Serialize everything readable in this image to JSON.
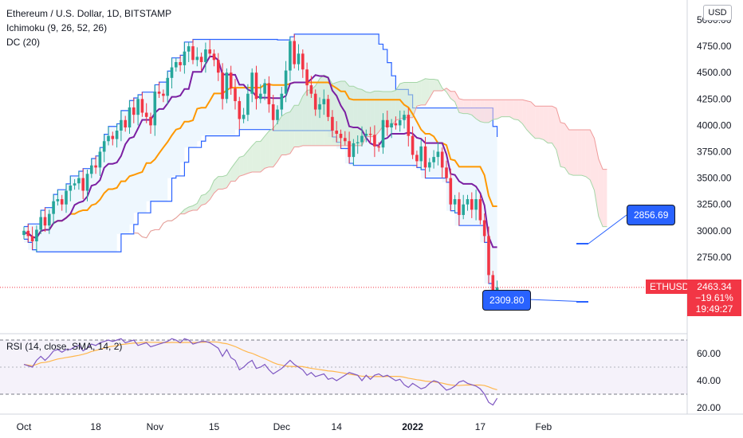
{
  "header": {
    "title": "Ethereum / U.S. Dollar, 1D, BITSTAMP",
    "indicator1": "Ichimoku (9, 26, 52, 26)",
    "indicator2": "DC (20)",
    "currency": "USD"
  },
  "price_axis": {
    "ticks": [
      "5000.00",
      "4750.00",
      "4500.00",
      "4250.00",
      "4000.00",
      "3750.00",
      "3500.00",
      "3250.00",
      "3000.00",
      "2750.00"
    ]
  },
  "rsi_panel": {
    "label": "RSI (14, close, SMA, 14, 2)",
    "ticks": [
      "60.00",
      "40.00",
      "20.00"
    ]
  },
  "time_axis": {
    "labels": [
      "Oct",
      "18",
      "Nov",
      "15",
      "Dec",
      "14",
      "2022",
      "17",
      "Feb"
    ]
  },
  "last_price": {
    "symbol": "ETHUSD",
    "price": "2463.34",
    "change": "−19.61%",
    "countdown": "19:49:27"
  },
  "callouts": {
    "upper": "2856.69",
    "lower": "2309.80"
  },
  "colors": {
    "up": "#26a69a",
    "down": "#f23645",
    "tenkan": "#7b1fa2",
    "kijun": "#ff9800",
    "donchian": "#2962ff",
    "rsi": "#7e57c2",
    "rsi_sma": "#ffb74d",
    "cloud_bull": "#c8e6c9",
    "cloud_bear": "#ffcdd2"
  },
  "chart_data": {
    "type": "candlestick",
    "symbol": "ETHUSD",
    "ylim": [
      2200,
      5080
    ],
    "x_ticks": [
      {
        "day": 1,
        "label": "Oct"
      },
      {
        "day": 18,
        "label": "18"
      },
      {
        "day": 32,
        "label": "Nov"
      },
      {
        "day": 46,
        "label": "15"
      },
      {
        "day": 62,
        "label": "Dec"
      },
      {
        "day": 75,
        "label": "14"
      },
      {
        "day": 93,
        "label": "2022"
      },
      {
        "day": 109,
        "label": "17"
      },
      {
        "day": 124,
        "label": "Feb"
      }
    ],
    "closes": [
      3000,
      2950,
      2900,
      3010,
      3130,
      3050,
      3160,
      3280,
      3300,
      3250,
      3380,
      3430,
      3450,
      3500,
      3380,
      3540,
      3620,
      3600,
      3750,
      3850,
      3900,
      3870,
      3950,
      4050,
      3980,
      4170,
      4100,
      4250,
      4120,
      4080,
      4000,
      4320,
      4300,
      4280,
      4450,
      4550,
      4600,
      4570,
      4700,
      4750,
      4620,
      4650,
      4600,
      4720,
      4680,
      4620,
      4500,
      4250,
      4500,
      4350,
      4230,
      4060,
      4100,
      4300,
      4500,
      4250,
      4300,
      4400,
      4200,
      4050,
      4150,
      4300,
      4520,
      4800,
      4580,
      4680,
      4530,
      4380,
      4300,
      4150,
      4200,
      4250,
      4080,
      3950,
      3920,
      3880,
      3850,
      3700,
      3830,
      3840,
      3900,
      3920,
      3910,
      3800,
      3790,
      4050,
      3980,
      4020,
      4000,
      4050,
      4100,
      3900,
      3720,
      3660,
      3800,
      3600,
      3650,
      3700,
      3750,
      3600,
      3500,
      3250,
      3300,
      3150,
      3250,
      3300,
      3200,
      3300,
      3100,
      2950,
      2580,
      2400,
      2463
    ],
    "rsi": [
      52,
      51,
      50,
      55,
      58,
      55,
      58,
      62,
      63,
      61,
      63,
      63,
      65,
      66,
      62,
      64,
      67,
      66,
      68,
      69,
      70,
      69,
      70,
      71,
      68,
      69,
      70,
      66,
      67,
      68,
      65,
      66,
      67,
      68,
      69,
      71,
      70,
      68,
      71,
      70,
      67,
      68,
      69,
      69,
      68,
      66,
      64,
      58,
      63,
      57,
      55,
      48,
      50,
      53,
      55,
      49,
      50,
      52,
      48,
      45,
      47,
      49,
      52,
      55,
      52,
      50,
      48,
      44,
      46,
      43,
      44,
      45,
      41,
      42,
      40,
      42,
      44,
      46,
      45,
      44,
      40,
      44,
      41,
      44,
      45,
      43,
      44,
      42,
      40,
      41,
      37,
      35,
      38,
      36,
      34,
      35,
      38,
      40,
      39,
      36,
      33,
      34,
      36,
      39,
      40,
      38,
      37,
      36,
      34,
      30,
      24,
      22,
      27
    ],
    "rsi_levels": [
      70,
      50,
      30
    ]
  }
}
